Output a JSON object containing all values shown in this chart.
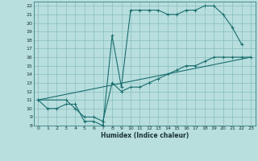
{
  "xlabel": "Humidex (Indice chaleur)",
  "bg_color": "#b8dede",
  "grid_color": "#88bebe",
  "line_color": "#1a6e6e",
  "xlim": [
    -0.5,
    23.5
  ],
  "ylim": [
    8,
    22.5
  ],
  "xticks": [
    0,
    1,
    2,
    3,
    4,
    5,
    6,
    7,
    8,
    9,
    10,
    11,
    12,
    13,
    14,
    15,
    16,
    17,
    18,
    19,
    20,
    21,
    22,
    23
  ],
  "yticks": [
    8,
    9,
    10,
    11,
    12,
    13,
    14,
    15,
    16,
    17,
    18,
    19,
    20,
    21,
    22
  ],
  "series": [
    {
      "x": [
        0,
        1,
        2,
        3,
        4,
        5,
        6,
        7,
        8,
        9,
        10,
        11,
        12,
        13,
        14,
        15,
        16,
        17,
        18,
        19,
        20,
        21,
        22
      ],
      "y": [
        11,
        10,
        10,
        10.5,
        10.5,
        8.5,
        8.5,
        8,
        18.5,
        12.5,
        21.5,
        21.5,
        21.5,
        21.5,
        21,
        21,
        21.5,
        21.5,
        22,
        22,
        21,
        19.5,
        17.5
      ]
    },
    {
      "x": [
        0,
        23
      ],
      "y": [
        11,
        16
      ]
    },
    {
      "x": [
        0,
        3,
        4,
        5,
        6,
        7,
        8,
        9,
        10,
        11,
        12,
        13,
        14,
        15,
        16,
        17,
        18,
        19,
        20,
        21,
        22,
        23
      ],
      "y": [
        11,
        11,
        10,
        9,
        9,
        8.5,
        13,
        12,
        12.5,
        12.5,
        13,
        13.5,
        14,
        14.5,
        15,
        15,
        15.5,
        16,
        16,
        16,
        16,
        16
      ]
    }
  ]
}
